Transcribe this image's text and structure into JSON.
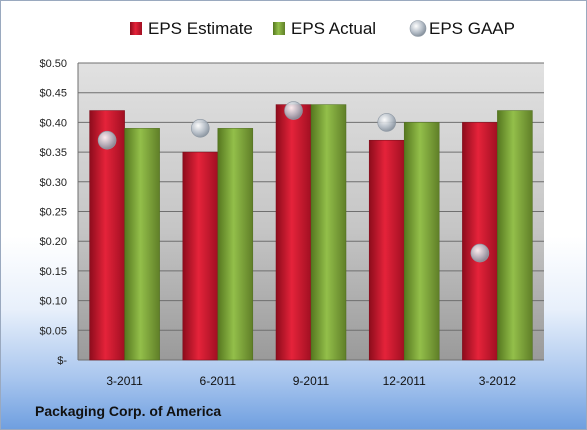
{
  "company": "Packaging Corp. of America",
  "chart_data": {
    "type": "bar",
    "categories": [
      "3-2011",
      "6-2011",
      "9-2011",
      "12-2011",
      "3-2012"
    ],
    "series": [
      {
        "name": "EPS Estimate",
        "type": "bar",
        "color": "#c8102e",
        "values": [
          0.42,
          0.35,
          0.43,
          0.37,
          0.4
        ]
      },
      {
        "name": "EPS Actual",
        "type": "bar",
        "color": "#7aa33a",
        "values": [
          0.39,
          0.39,
          0.43,
          0.4,
          0.42
        ]
      },
      {
        "name": "EPS GAAP",
        "type": "scatter",
        "color": "#b8c2cc",
        "values": [
          0.37,
          0.39,
          0.42,
          0.4,
          0.18
        ]
      }
    ],
    "ylim": [
      0,
      0.5
    ],
    "yticks": [
      "$-",
      "$0.05",
      "$0.10",
      "$0.15",
      "$0.20",
      "$0.25",
      "$0.30",
      "$0.35",
      "$0.40",
      "$0.45",
      "$0.50"
    ],
    "grid": true,
    "legend": "top"
  }
}
